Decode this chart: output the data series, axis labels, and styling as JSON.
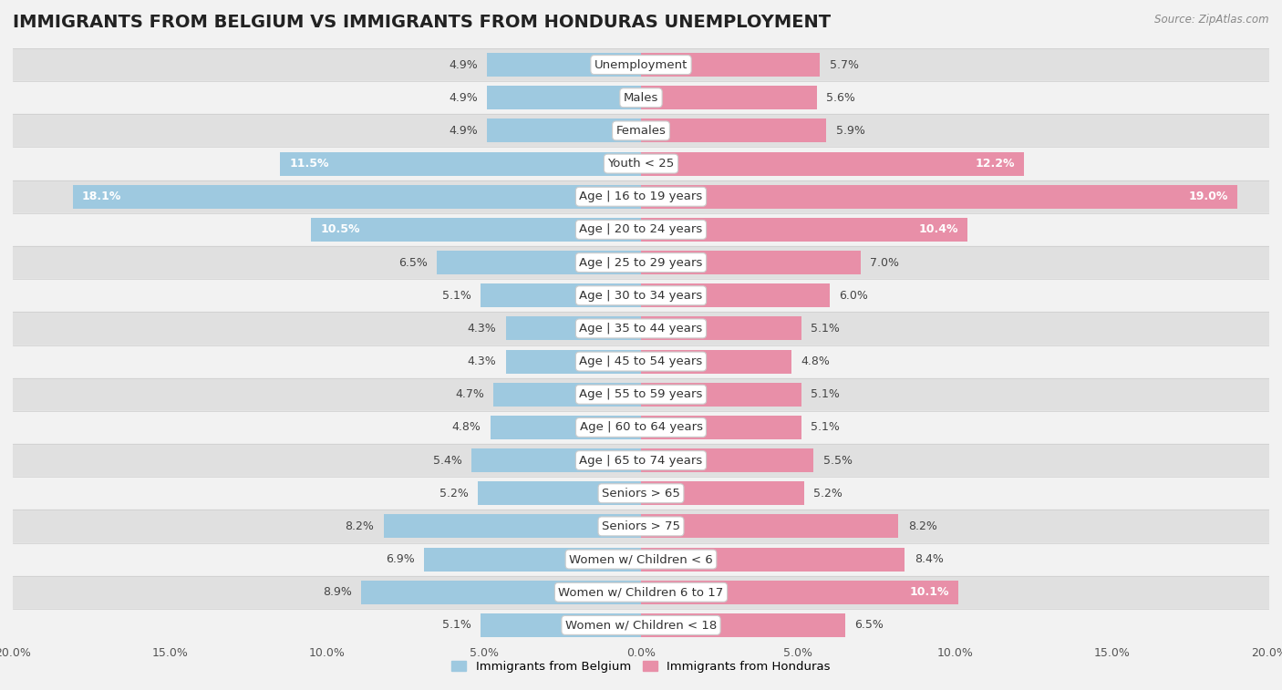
{
  "title": "IMMIGRANTS FROM BELGIUM VS IMMIGRANTS FROM HONDURAS UNEMPLOYMENT",
  "source": "Source: ZipAtlas.com",
  "categories": [
    "Unemployment",
    "Males",
    "Females",
    "Youth < 25",
    "Age | 16 to 19 years",
    "Age | 20 to 24 years",
    "Age | 25 to 29 years",
    "Age | 30 to 34 years",
    "Age | 35 to 44 years",
    "Age | 45 to 54 years",
    "Age | 55 to 59 years",
    "Age | 60 to 64 years",
    "Age | 65 to 74 years",
    "Seniors > 65",
    "Seniors > 75",
    "Women w/ Children < 6",
    "Women w/ Children 6 to 17",
    "Women w/ Children < 18"
  ],
  "belgium_values": [
    4.9,
    4.9,
    4.9,
    11.5,
    18.1,
    10.5,
    6.5,
    5.1,
    4.3,
    4.3,
    4.7,
    4.8,
    5.4,
    5.2,
    8.2,
    6.9,
    8.9,
    5.1
  ],
  "honduras_values": [
    5.7,
    5.6,
    5.9,
    12.2,
    19.0,
    10.4,
    7.0,
    6.0,
    5.1,
    4.8,
    5.1,
    5.1,
    5.5,
    5.2,
    8.2,
    8.4,
    10.1,
    6.5
  ],
  "belgium_color": "#9ec9e0",
  "honduras_color": "#e88fa8",
  "xlim": 20.0,
  "legend_belgium": "Immigrants from Belgium",
  "legend_honduras": "Immigrants from Honduras",
  "background_color": "#f2f2f2",
  "row_color_odd": "#f2f2f2",
  "row_color_even": "#e0e0e0",
  "title_fontsize": 14,
  "label_fontsize": 9.5,
  "value_fontsize": 9,
  "tick_fontsize": 9
}
